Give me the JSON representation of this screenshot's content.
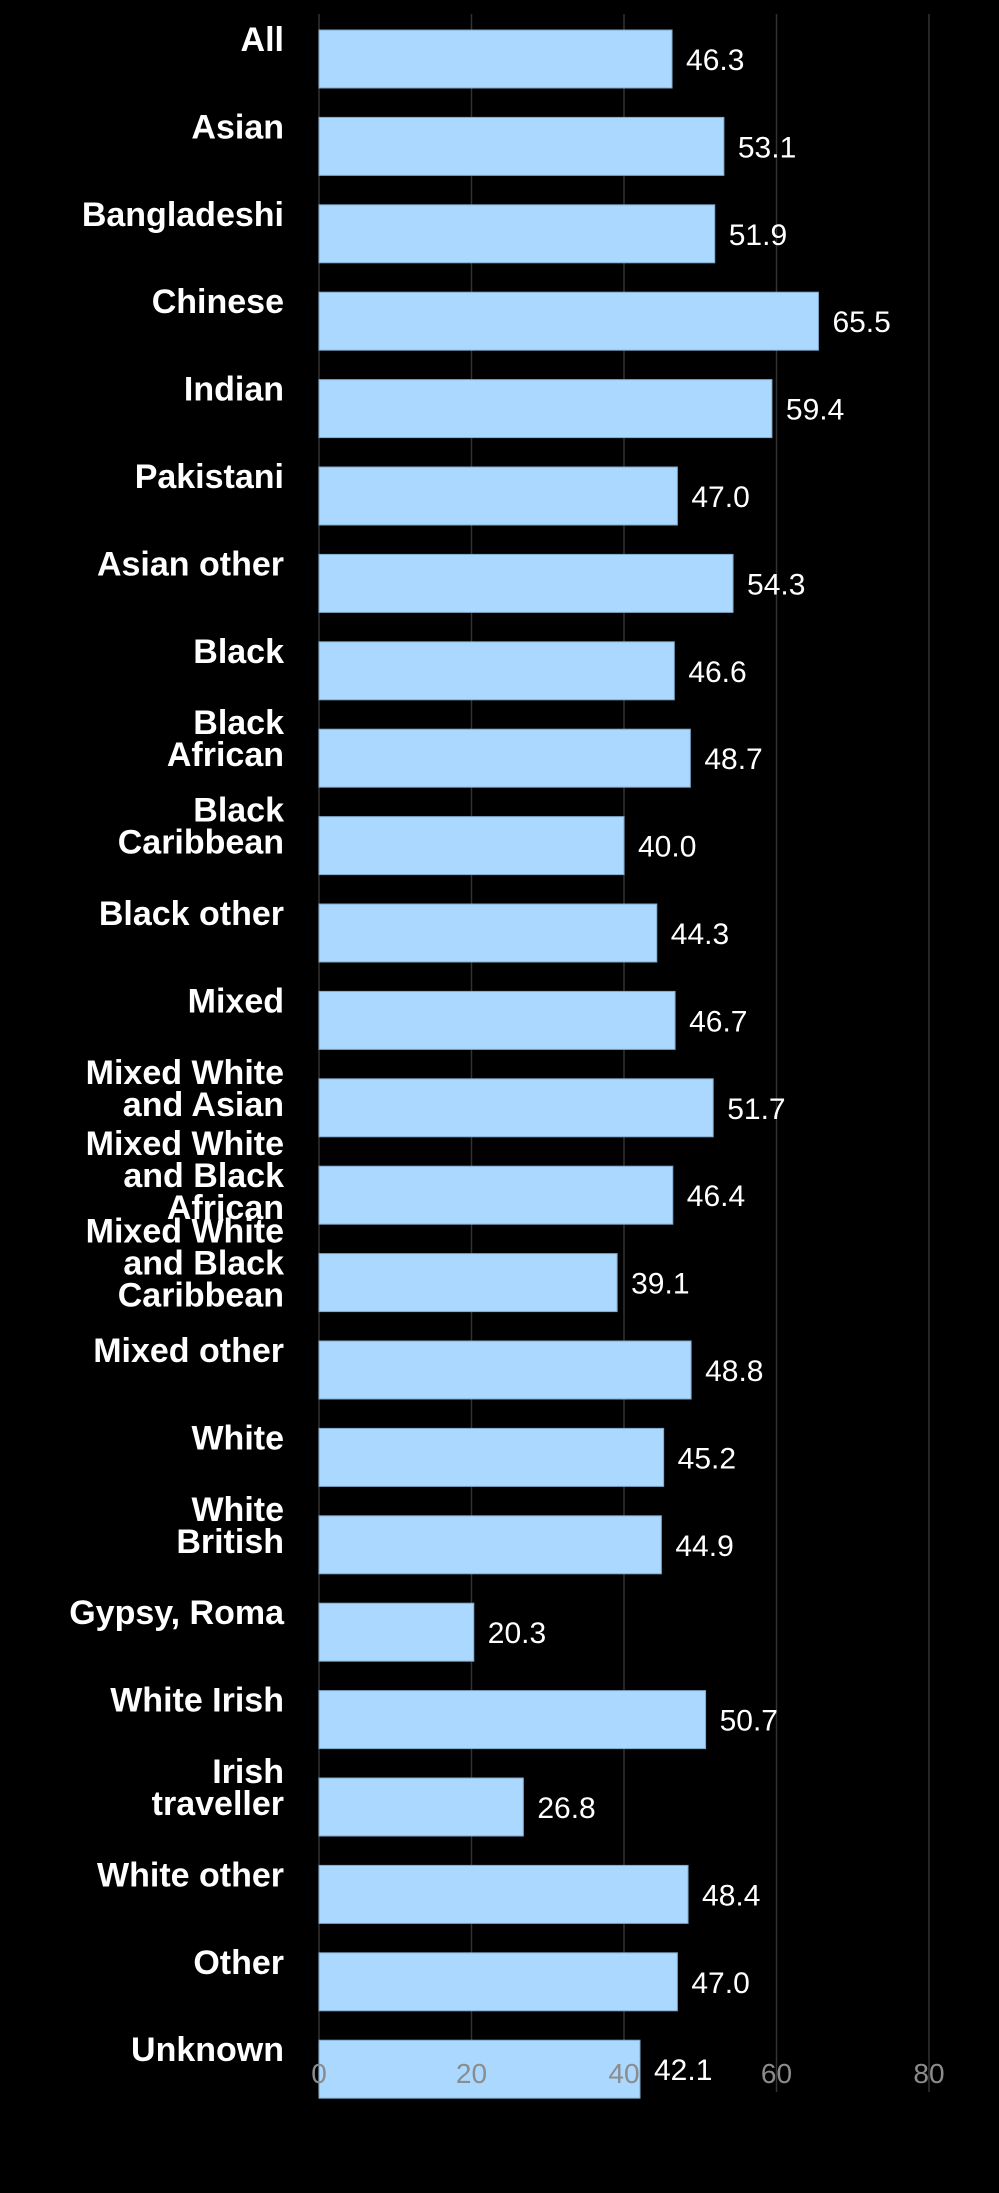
{
  "colors": {
    "background": "#000000",
    "bar": "#aad8ff",
    "grid": "#333333",
    "text": "#ffffff",
    "tick": "#8c8c8c"
  },
  "chart_data": {
    "type": "bar",
    "orientation": "horizontal",
    "title": "",
    "xlabel": "",
    "ylabel": "",
    "xlim": [
      0,
      80
    ],
    "x_ticks": [
      0,
      20,
      40,
      60,
      80
    ],
    "grid": "vertical",
    "categories": [
      "All",
      "Asian",
      "Bangladeshi",
      "Chinese",
      "Indian",
      "Pakistani",
      "Asian other",
      "Black",
      "Black African",
      "Black Caribbean",
      "Black other",
      "Mixed",
      "Mixed White and Asian",
      "Mixed White and Black African",
      "Mixed White and Black Caribbean",
      "Mixed other",
      "White",
      "White British",
      "Gypsy, Roma",
      "White Irish",
      "Irish traveller",
      "White other",
      "Other",
      "Unknown"
    ],
    "values": [
      46.3,
      53.1,
      51.9,
      65.5,
      59.4,
      47.0,
      54.3,
      46.6,
      48.7,
      40.0,
      44.3,
      46.7,
      51.7,
      46.4,
      39.1,
      48.8,
      45.2,
      44.9,
      20.3,
      50.7,
      26.8,
      48.4,
      47.0,
      42.1
    ],
    "value_labels": [
      "46.3",
      "53.1",
      "51.9",
      "65.5",
      "59.4",
      "47.0",
      "54.3",
      "46.6",
      "48.7",
      "40.0",
      "44.3",
      "46.7",
      "51.7",
      "46.4",
      "39.1",
      "48.8",
      "45.2",
      "44.9",
      "20.3",
      "50.7",
      "26.8",
      "48.4",
      "47.0",
      "42.1"
    ]
  }
}
